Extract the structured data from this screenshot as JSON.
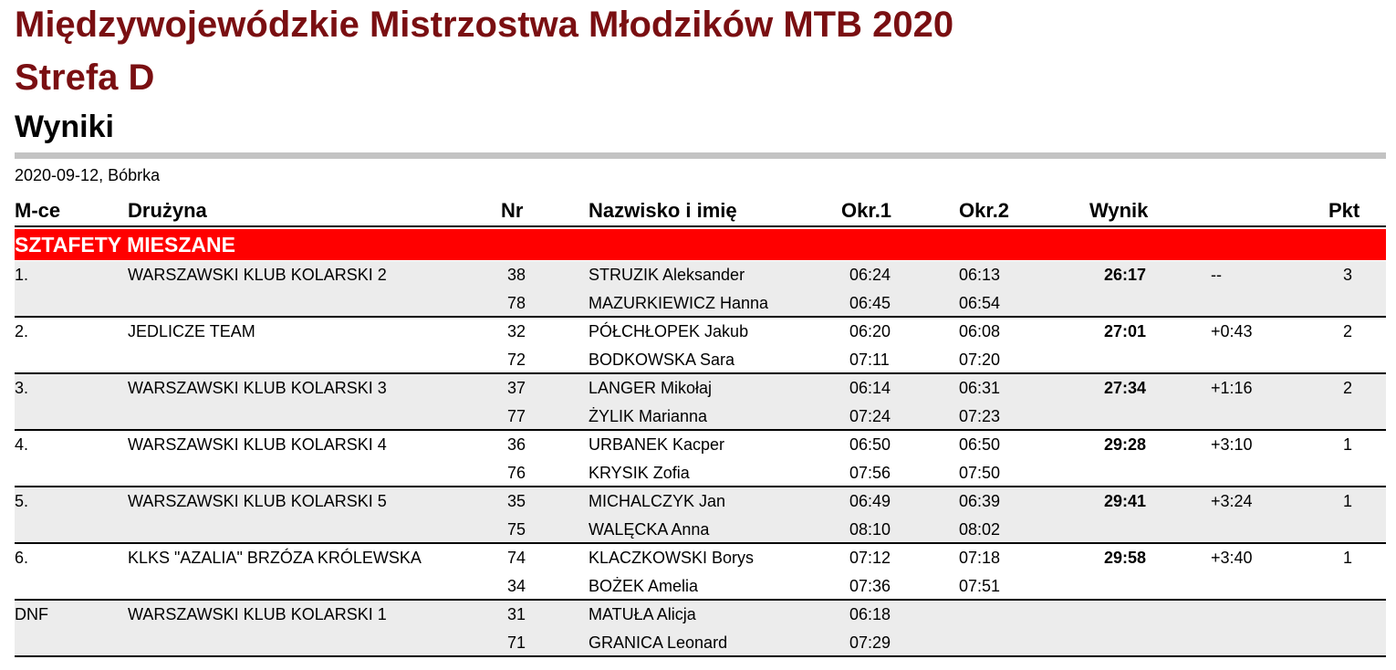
{
  "document": {
    "title": "Międzywojewódzkie Mistrzostwa Młodzików MTB 2020",
    "subtitle": "Strefa D",
    "section": "Wyniki",
    "date_place": "2020-09-12, Bóbrka"
  },
  "table": {
    "headers": {
      "place": "M-ce",
      "team": "Drużyna",
      "nr": "Nr",
      "name": "Nazwisko i imię",
      "okr1": "Okr.1",
      "okr2": "Okr.2",
      "wynik": "Wynik",
      "pkt": "Pkt"
    },
    "category": "SZTAFETY MIESZANE",
    "teams": [
      {
        "place": "1.",
        "team": "WARSZAWSKI KLUB KOLARSKI 2",
        "result": "26:17",
        "diff": "--",
        "pkt": "3",
        "riders": [
          {
            "nr": "38",
            "name": "STRUZIK Aleksander",
            "okr1": "06:24",
            "okr2": "06:13"
          },
          {
            "nr": "78",
            "name": "MAZURKIEWICZ Hanna",
            "okr1": "06:45",
            "okr2": "06:54"
          }
        ]
      },
      {
        "place": "2.",
        "team": "JEDLICZE TEAM",
        "result": "27:01",
        "diff": "+0:43",
        "pkt": "2",
        "riders": [
          {
            "nr": "32",
            "name": "PÓŁCHŁOPEK Jakub",
            "okr1": "06:20",
            "okr2": "06:08"
          },
          {
            "nr": "72",
            "name": "BODKOWSKA Sara",
            "okr1": "07:11",
            "okr2": "07:20"
          }
        ]
      },
      {
        "place": "3.",
        "team": "WARSZAWSKI KLUB KOLARSKI 3",
        "result": "27:34",
        "diff": "+1:16",
        "pkt": "2",
        "riders": [
          {
            "nr": "37",
            "name": "LANGER Mikołaj",
            "okr1": "06:14",
            "okr2": "06:31"
          },
          {
            "nr": "77",
            "name": "ŻYLIK Marianna",
            "okr1": "07:24",
            "okr2": "07:23"
          }
        ]
      },
      {
        "place": "4.",
        "team": "WARSZAWSKI KLUB KOLARSKI 4",
        "result": "29:28",
        "diff": "+3:10",
        "pkt": "1",
        "riders": [
          {
            "nr": "36",
            "name": "URBANEK Kacper",
            "okr1": "06:50",
            "okr2": "06:50"
          },
          {
            "nr": "76",
            "name": "KRYSIK Zofia",
            "okr1": "07:56",
            "okr2": "07:50"
          }
        ]
      },
      {
        "place": "5.",
        "team": "WARSZAWSKI KLUB KOLARSKI 5",
        "result": "29:41",
        "diff": "+3:24",
        "pkt": "1",
        "riders": [
          {
            "nr": "35",
            "name": "MICHALCZYK Jan",
            "okr1": "06:49",
            "okr2": "06:39"
          },
          {
            "nr": "75",
            "name": "WALĘCKA Anna",
            "okr1": "08:10",
            "okr2": "08:02"
          }
        ]
      },
      {
        "place": "6.",
        "team": "KLKS \"AZALIA\" BRZÓZA KRÓLEWSKA",
        "result": "29:58",
        "diff": "+3:40",
        "pkt": "1",
        "riders": [
          {
            "nr": "74",
            "name": "KLACZKOWSKI Borys",
            "okr1": "07:12",
            "okr2": "07:18"
          },
          {
            "nr": "34",
            "name": "BOŻEK Amelia",
            "okr1": "07:36",
            "okr2": "07:51"
          }
        ]
      },
      {
        "place": "DNF",
        "team": "WARSZAWSKI KLUB KOLARSKI 1",
        "result": "",
        "diff": "",
        "pkt": "",
        "riders": [
          {
            "nr": "31",
            "name": "MATUŁA Alicja",
            "okr1": "06:18",
            "okr2": ""
          },
          {
            "nr": "71",
            "name": "GRANICA Leonard",
            "okr1": "07:29",
            "okr2": ""
          }
        ]
      }
    ]
  }
}
